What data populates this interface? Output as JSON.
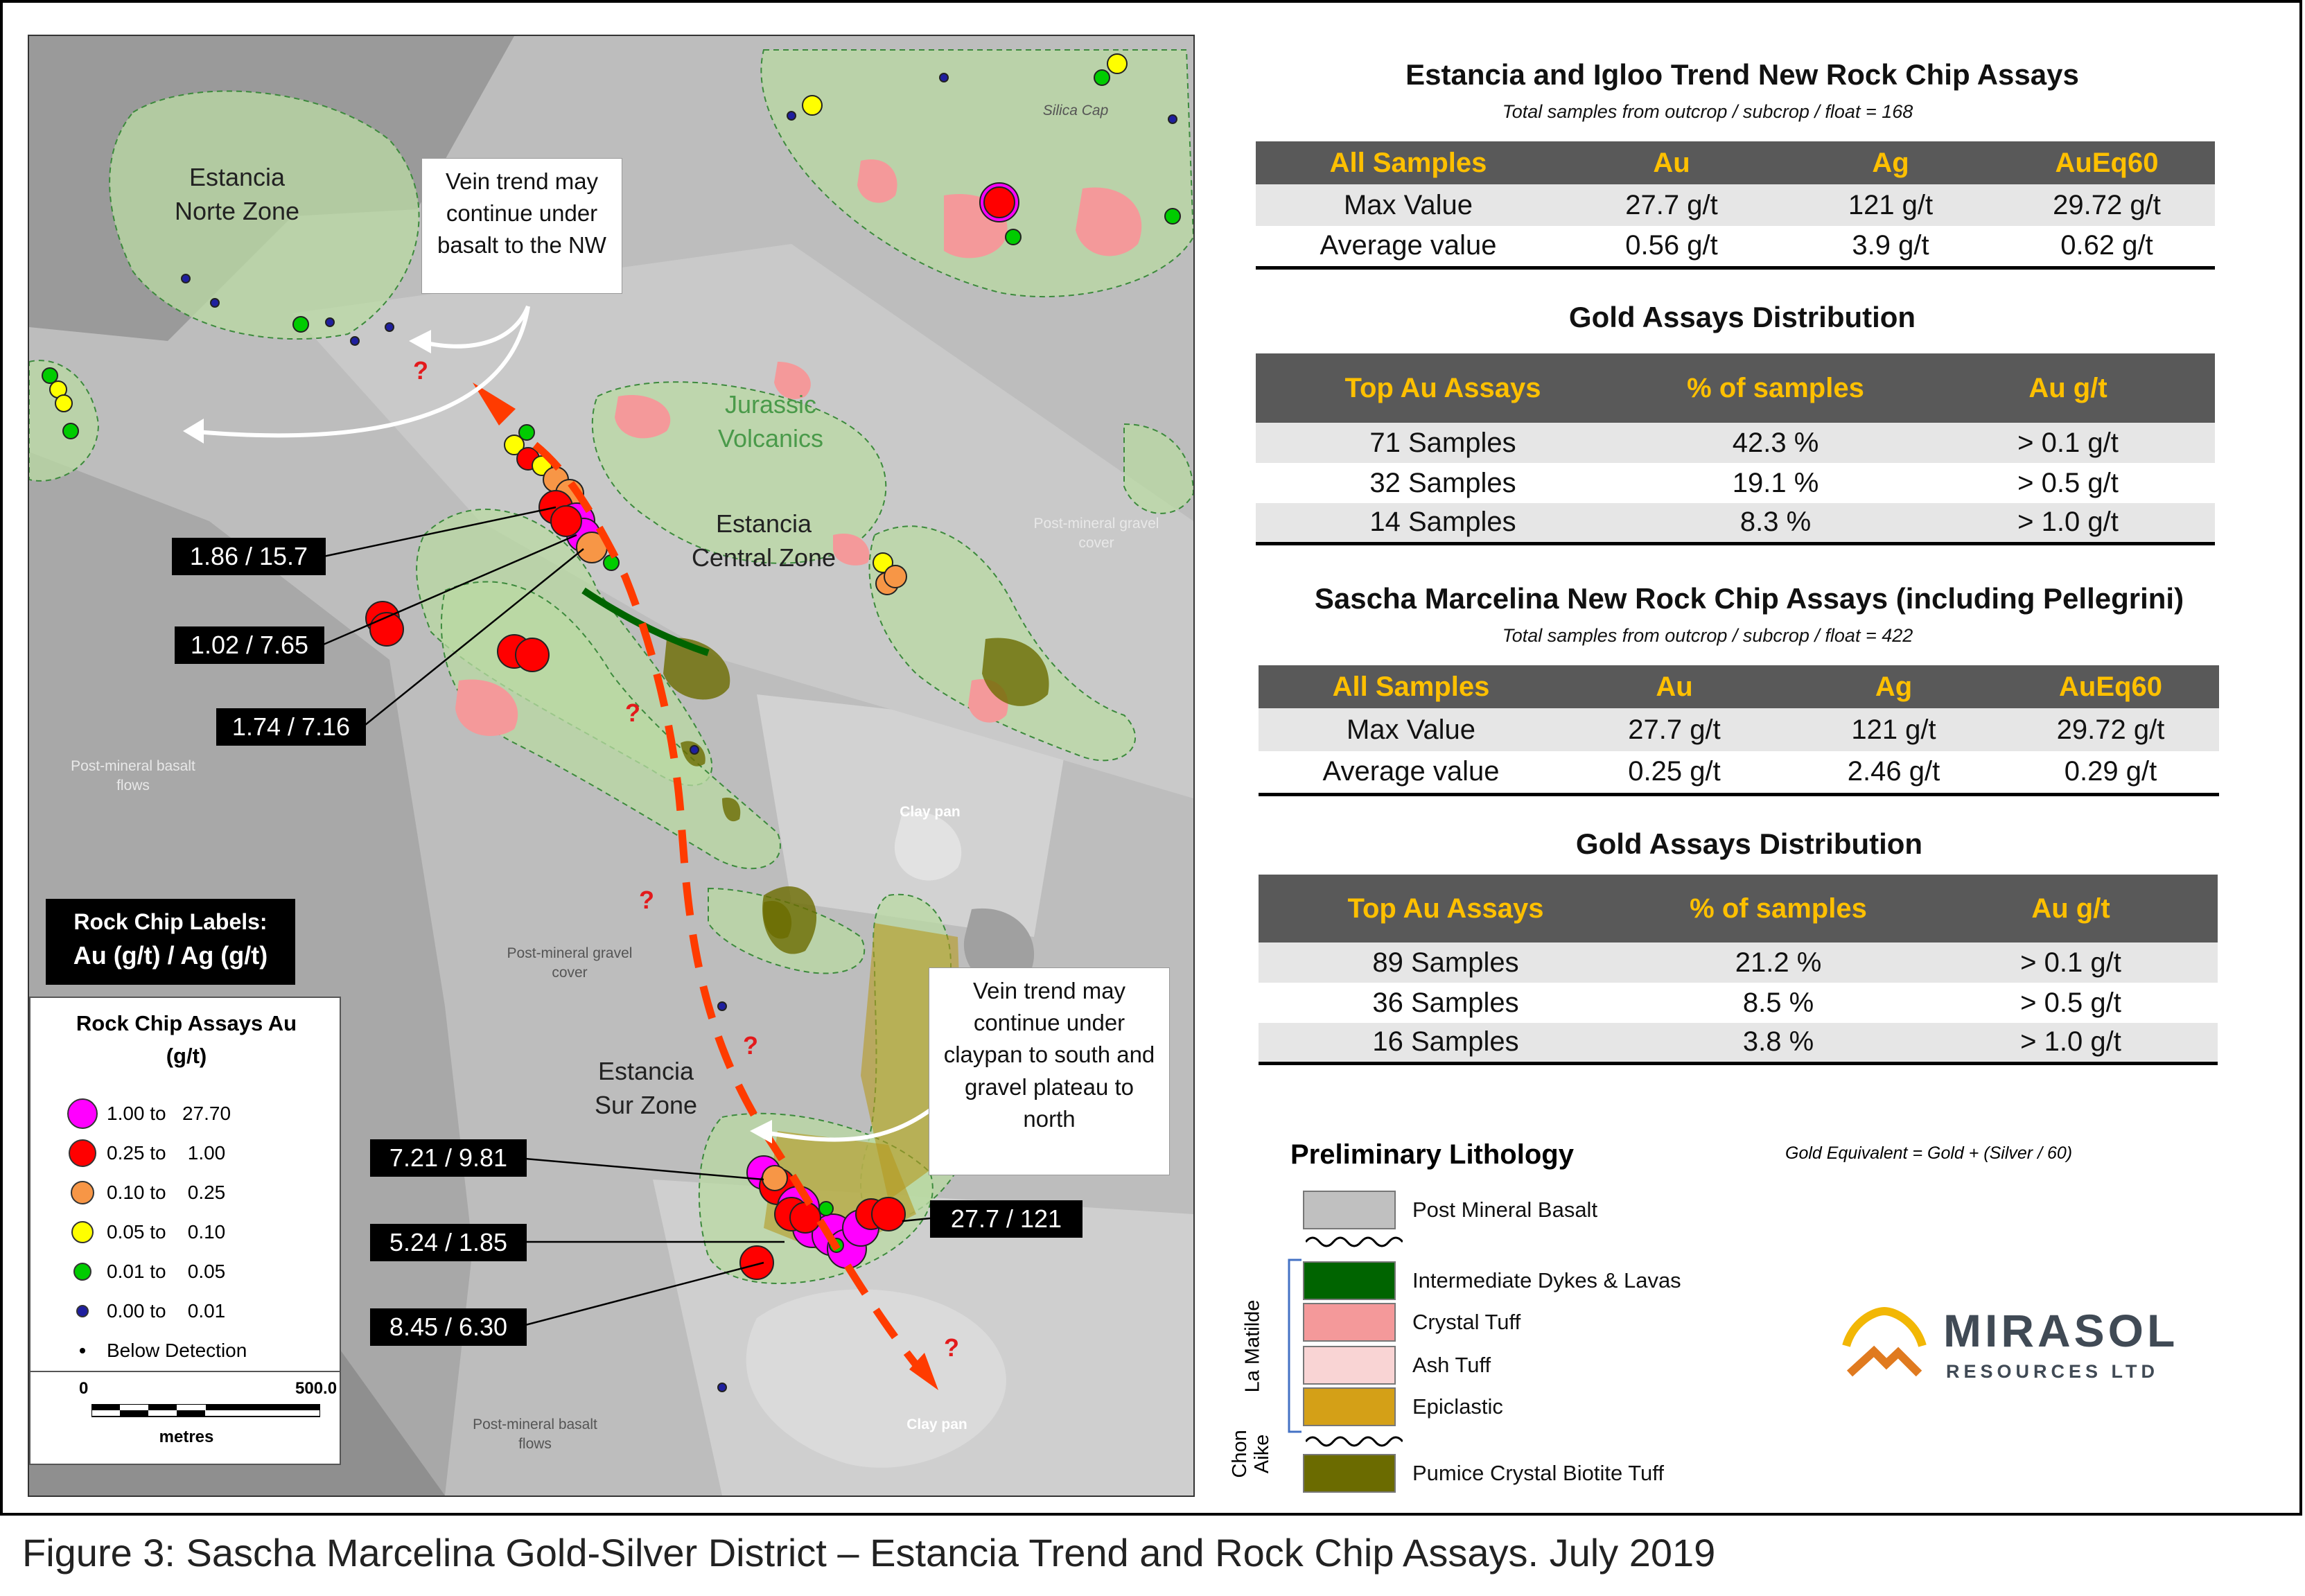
{
  "map": {
    "zones": {
      "norte": "Estancia\nNorte Zone",
      "central": "Estancia\nCentral Zone",
      "sur": "Estancia\nSur Zone",
      "jurassic": "Jurassic\nVolcanics",
      "silica_cap": "Silica Cap"
    },
    "terrain": {
      "gravel_cover_1": "Post-mineral gravel\ncover",
      "gravel_cover_2": "Post-mineral gravel\ncover",
      "basalt_flows_1": "Post-mineral basalt\nflows",
      "basalt_flows_2": "Post-mineral basalt\nflows",
      "clay_pan_1": "Clay pan",
      "clay_pan_2": "Clay pan"
    },
    "callouts": {
      "nw": "Vein trend may\ncontinue under\nbasalt to the NW",
      "south": "Vein trend may\ncontinue under\nclaypan to south and\ngravel plateau to\nnorth"
    },
    "labels": [
      "1.86 / 15.7",
      "1.02 / 7.65",
      "1.74 / 7.16",
      "7.21 / 9.81",
      "5.24 / 1.85",
      "8.45 / 6.30",
      "27.7 / 121"
    ],
    "question_mark": "?",
    "rock_chip_labels": {
      "line1": "Rock Chip Labels:",
      "line2": "Au (g/t) / Ag (g/t)"
    },
    "legend": {
      "title": "Rock Chip Assays Au\n(g/t)",
      "items": [
        {
          "label": "1.00 to   27.70",
          "color": "#ff00ff"
        },
        {
          "label": "0.25 to    1.00",
          "color": "#ff0000"
        },
        {
          "label": "0.10 to    0.25",
          "color": "#f79646"
        },
        {
          "label": "0.05 to    0.10",
          "color": "#ffff00"
        },
        {
          "label": "0.01 to    0.05",
          "color": "#00cc00"
        },
        {
          "label": "0.00 to    0.01",
          "color": "#1f1f9f"
        },
        {
          "label": "Below Detection",
          "color": "#000000"
        }
      ]
    },
    "scale": {
      "zero": "0",
      "max": "500.0",
      "units": "metres"
    }
  },
  "estancia": {
    "title": "Estancia and Igloo Trend New Rock Chip Assays",
    "subtitle": "Total samples from outcrop / subcrop / float = 168",
    "summary_headers": [
      "All Samples",
      "Au",
      "Ag",
      "AuEq60"
    ],
    "summary_rows": [
      [
        "Max Value",
        "27.7 g/t",
        "121 g/t",
        "29.72 g/t"
      ],
      [
        "Average value",
        "0.56 g/t",
        "3.9 g/t",
        "0.62 g/t"
      ]
    ],
    "dist_title": "Gold Assays Distribution",
    "dist_headers": [
      "Top Au Assays",
      "% of samples",
      "Au g/t"
    ],
    "dist_rows": [
      [
        "71 Samples",
        "42.3 %",
        "> 0.1 g/t"
      ],
      [
        "32 Samples",
        "19.1 %",
        "> 0.5 g/t"
      ],
      [
        "14 Samples",
        "8.3 %",
        "> 1.0 g/t"
      ]
    ]
  },
  "sascha": {
    "title": "Sascha Marcelina New Rock Chip Assays (including Pellegrini)",
    "subtitle": "Total samples from outcrop / subcrop / float = 422",
    "summary_headers": [
      "All Samples",
      "Au",
      "Ag",
      "AuEq60"
    ],
    "summary_rows": [
      [
        "Max Value",
        "27.7 g/t",
        "121 g/t",
        "29.72 g/t"
      ],
      [
        "Average value",
        "0.25 g/t",
        "2.46 g/t",
        "0.29 g/t"
      ]
    ],
    "dist_title": "Gold Assays Distribution",
    "dist_headers": [
      "Top Au Assays",
      "% of samples",
      "Au g/t"
    ],
    "dist_rows": [
      [
        "89 Samples",
        "21.2 %",
        "> 0.1 g/t"
      ],
      [
        "36 Samples",
        "8.5 %",
        "> 0.5 g/t"
      ],
      [
        "16 Samples",
        "3.8 %",
        "> 1.0 g/t"
      ]
    ]
  },
  "lithology": {
    "title": "Preliminary Lithology",
    "gold_equivalent_note": "Gold Equivalent = Gold + (Silver / 60)",
    "group_la_matilde": "La Matilde",
    "group_chon_aike": "Chon\nAike",
    "items": [
      {
        "label": "Post Mineral Basalt",
        "color": "#c0c0c0"
      },
      {
        "label": "Intermediate Dykes & Lavas",
        "color": "#006400"
      },
      {
        "label": "Crystal Tuff",
        "color": "#f4999a"
      },
      {
        "label": "Ash Tuff",
        "color": "#f9d4d4"
      },
      {
        "label": "Epiclastic",
        "color": "#d4a017"
      },
      {
        "label": "Pumice Crystal Biotite Tuff",
        "color": "#6b6b00"
      }
    ]
  },
  "logo": {
    "name": "MIRASOL",
    "sub": "RESOURCES LTD"
  },
  "caption": "Figure 3: Sascha Marcelina Gold-Silver District – Estancia Trend and Rock Chip Assays. July 2019"
}
